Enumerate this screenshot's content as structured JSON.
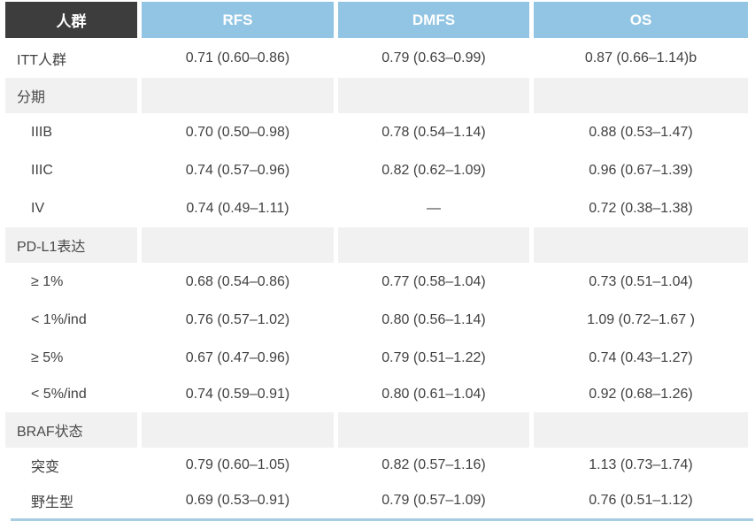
{
  "table": {
    "header": {
      "population": "人群",
      "rfs": "RFS",
      "dmfs": "DMFS",
      "os": "OS"
    },
    "rows": [
      {
        "type": "data",
        "indent": false,
        "label": "ITT人群",
        "rfs": "0.71 (0.60–0.86)",
        "dmfs": "0.79 (0.63–0.99)",
        "os": "0.87 (0.66–1.14)b"
      },
      {
        "type": "section",
        "indent": false,
        "label": "分期",
        "rfs": "",
        "dmfs": "",
        "os": ""
      },
      {
        "type": "data",
        "indent": true,
        "label": "IIIB",
        "rfs": "0.70 (0.50–0.98)",
        "dmfs": "0.78 (0.54–1.14)",
        "os": "0.88 (0.53–1.47)"
      },
      {
        "type": "data",
        "indent": true,
        "label": "IIIC",
        "rfs": "0.74 (0.57–0.96)",
        "dmfs": "0.82 (0.62–1.09)",
        "os": "0.96 (0.67–1.39)"
      },
      {
        "type": "data",
        "indent": true,
        "label": "IV",
        "rfs": "0.74 (0.49–1.11)",
        "dmfs": "—",
        "os": "0.72 (0.38–1.38)"
      },
      {
        "type": "section",
        "indent": false,
        "label": "PD-L1表达",
        "rfs": "",
        "dmfs": "",
        "os": ""
      },
      {
        "type": "data",
        "indent": true,
        "label": "≥ 1%",
        "rfs": "0.68 (0.54–0.86)",
        "dmfs": "0.77 (0.58–1.04)",
        "os": "0.73 (0.51–1.04)"
      },
      {
        "type": "data",
        "indent": true,
        "label": "< 1%/ind",
        "rfs": "0.76 (0.57–1.02)",
        "dmfs": "0.80 (0.56–1.14)",
        "os": "1.09 (0.72–1.67 )"
      },
      {
        "type": "data",
        "indent": true,
        "label": "≥ 5%",
        "rfs": "0.67 (0.47–0.96)",
        "dmfs": "0.79 (0.51–1.22)",
        "os": "0.74 (0.43–1.27)"
      },
      {
        "type": "data",
        "indent": true,
        "label": "< 5%/ind",
        "rfs": "0.74 (0.59–0.91)",
        "dmfs": "0.80 (0.61–1.04)",
        "os": "0.92 (0.68–1.26)"
      },
      {
        "type": "section",
        "indent": false,
        "label": "BRAF状态",
        "rfs": "",
        "dmfs": "",
        "os": ""
      },
      {
        "type": "data",
        "indent": true,
        "label": "突变",
        "rfs": "0.79 (0.60–1.05)",
        "dmfs": "0.82 (0.57–1.16)",
        "os": "1.13 (0.73–1.74)"
      },
      {
        "type": "data",
        "indent": true,
        "label": "野生型",
        "rfs": "0.69 (0.53–0.91)",
        "dmfs": "0.79 (0.57–1.09)",
        "os": "0.76 (0.51–1.12)"
      }
    ],
    "colors": {
      "header_dark_bg": "#3d3d3d",
      "header_blue_bg": "#92c5e3",
      "section_row_bg": "#f1f1f1",
      "bottom_border": "#a6cde1",
      "value_text": "#414141"
    }
  }
}
